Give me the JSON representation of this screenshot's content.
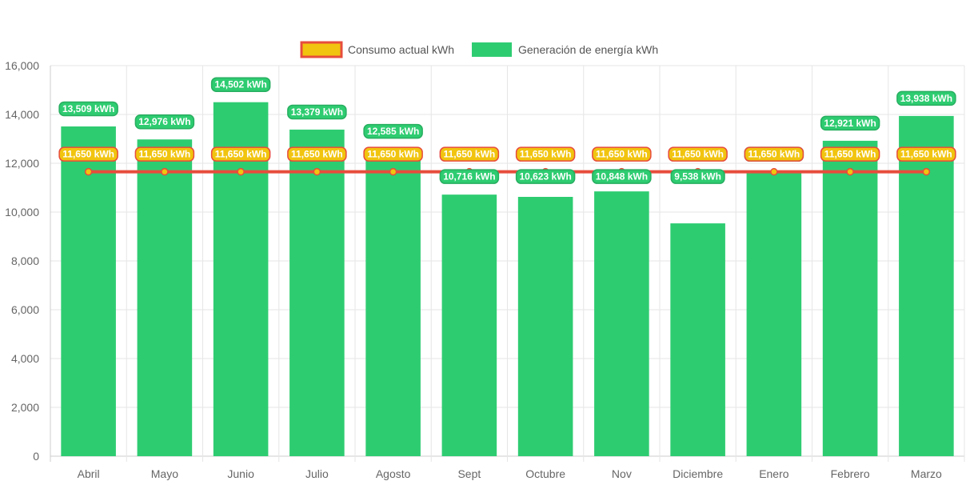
{
  "chart_data": {
    "type": "bar",
    "title": "",
    "xlabel": "",
    "ylabel": "",
    "ylim": [
      0,
      16000
    ],
    "yticks": [
      0,
      2000,
      4000,
      6000,
      8000,
      10000,
      12000,
      14000,
      16000
    ],
    "ytick_labels": [
      "0",
      "2,000",
      "4,000",
      "6,000",
      "8,000",
      "10,000",
      "12,000",
      "14,000",
      "16,000"
    ],
    "grid": true,
    "legend_position": "top-center",
    "categories": [
      "Abril",
      "Mayo",
      "Junio",
      "Julio",
      "Agosto",
      "Sept",
      "Octubre",
      "Nov",
      "Diciembre",
      "Enero",
      "Febrero",
      "Marzo"
    ],
    "series": [
      {
        "name": "Consumo actual kWh",
        "type": "line",
        "color": "#e74c3c",
        "fill": "#f1c40f",
        "values": [
          11650,
          11650,
          11650,
          11650,
          11650,
          11650,
          11650,
          11650,
          11650,
          11650,
          11650,
          11650
        ],
        "labels": [
          "11,650 kWh",
          "11,650 kWh",
          "11,650 kWh",
          "11,650 kWh",
          "11,650 kWh",
          "11,650 kWh",
          "11,650 kWh",
          "11,650 kWh",
          "11,650 kWh",
          "11,650 kWh",
          "11,650 kWh",
          "11,650 kWh"
        ]
      },
      {
        "name": "Generación de energía kWh",
        "type": "bar",
        "color": "#2ecc71",
        "values": [
          13509,
          12976,
          14502,
          13379,
          12585,
          10716,
          10623,
          10848,
          9538,
          11650,
          12921,
          13938
        ],
        "labels": [
          "13,509 kWh",
          "12,976 kWh",
          "14,502 kWh",
          "13,379 kWh",
          "12,585 kWh",
          "10,716 kWh",
          "10,623 kWh",
          "10,848 kWh",
          "9,538 kWh",
          "11,650 kWh",
          "12,921 kWh",
          "13,938 kWh"
        ]
      }
    ]
  }
}
